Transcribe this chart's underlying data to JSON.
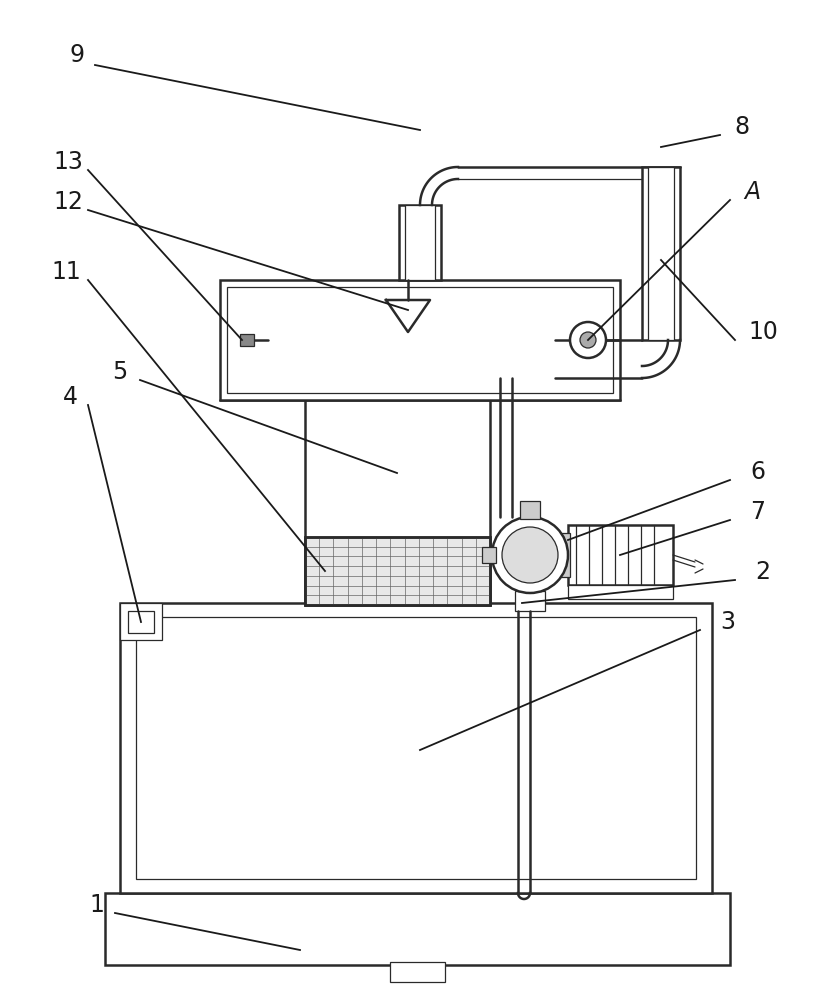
{
  "bg_color": "#ffffff",
  "line_color": "#2a2a2a",
  "lw_main": 1.8,
  "lw_thin": 0.9,
  "lw_label": 1.2,
  "fontsize": 17,
  "fig_w": 8.38,
  "fig_h": 10.0,
  "dpi": 100
}
